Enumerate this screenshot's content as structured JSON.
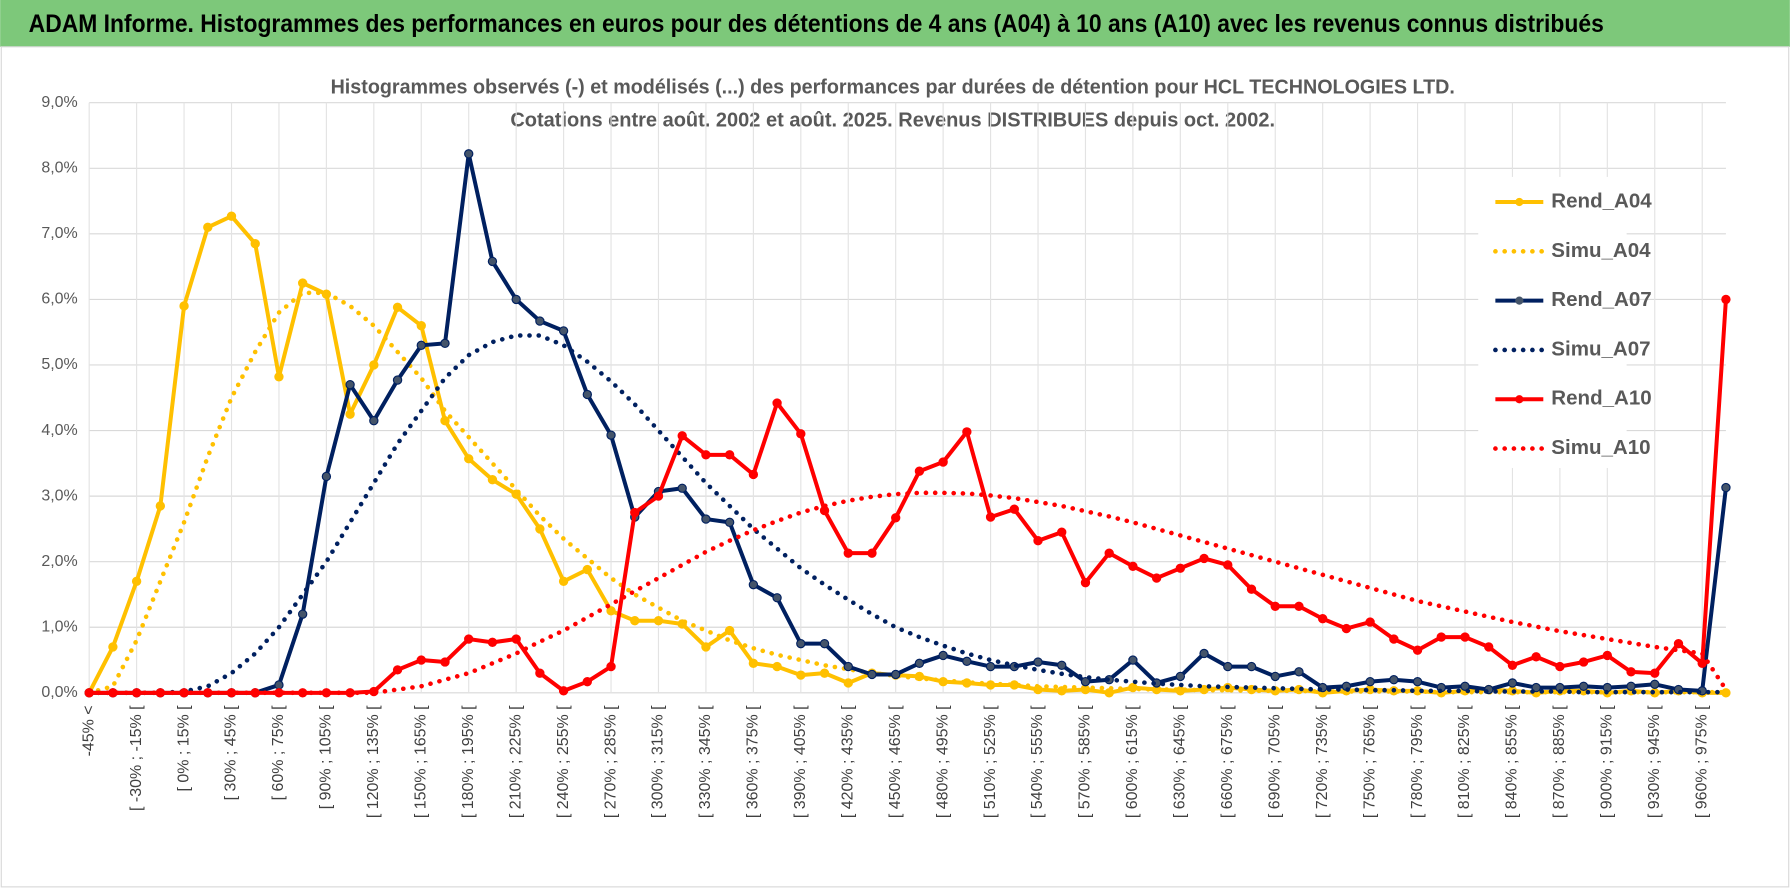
{
  "chart_data": {
    "type": "line",
    "title": "ADAM Informe. Histogrammes des performances en euros pour des détentions de 4 ans (A04) à 10 ans (A10) avec les revenus connus distribués",
    "subtitle": [
      "Histogrammes observés (-) et modélisés (...) des performances par durées de détention pour HCL TECHNOLOGIES LTD.",
      "Cotations entre août. 2002 et août. 2025.  Revenus DISTRIBUES depuis oct. 2002."
    ],
    "categories": [
      "-45% <",
      null,
      "[ -30% ; -15% [",
      null,
      "[ 0% ; 15% [",
      null,
      "[ 30% ; 45% [",
      null,
      "[ 60% ; 75% [",
      null,
      "[ 90% ; 105% [",
      null,
      "[ 120% ; 135% [",
      null,
      "[ 150% ; 165% [",
      null,
      "[ 180% ; 195% [",
      null,
      "[ 210% ; 225% [",
      null,
      "[ 240% ; 255% [",
      null,
      "[ 270% ; 285% [",
      null,
      "[ 300% ; 315% [",
      null,
      "[ 330% ; 345% [",
      null,
      "[ 360% ; 375% [",
      null,
      "[ 390% ; 405% [",
      null,
      "[ 420% ; 435% [",
      null,
      "[ 450% ; 465% [",
      null,
      "[ 480% ; 495% [",
      null,
      "[ 510% ; 525% [",
      null,
      "[ 540% ; 555% [",
      null,
      "[ 570% ; 585% [",
      null,
      "[ 600% ; 615% [",
      null,
      "[ 630% ; 645% [",
      null,
      "[ 660% ; 675% [",
      null,
      "[ 690% ; 705% [",
      null,
      "[ 720% ; 735% [",
      null,
      "[ 750% ; 765% [",
      null,
      "[ 780% ; 795% [",
      null,
      "[ 810% ; 825% [",
      null,
      "[ 840% ; 855% [",
      null,
      "[ 870% ; 885% [",
      null,
      "[ 900% ; 915% [",
      null,
      "[ 930% ; 945% [",
      null,
      "[ 960% ; 975% [",
      null
    ],
    "ylim": [
      0,
      9
    ],
    "yticks": [
      {
        "value": 0,
        "label": "0,0%"
      },
      {
        "value": 1,
        "label": "1,0%"
      },
      {
        "value": 2,
        "label": "2,0%"
      },
      {
        "value": 3,
        "label": "3,0%"
      },
      {
        "value": 4,
        "label": "4,0%"
      },
      {
        "value": 5,
        "label": "5,0%"
      },
      {
        "value": 6,
        "label": "6,0%"
      },
      {
        "value": 7,
        "label": "7,0%"
      },
      {
        "value": 8,
        "label": "8,0%"
      },
      {
        "value": 9,
        "label": "9,0%"
      }
    ],
    "grid": true,
    "legend": "right",
    "series": [
      {
        "name": "Rend_A04",
        "color": "#ffc000",
        "dashed": false,
        "markers": true,
        "values": [
          0,
          0.7,
          1.7,
          2.85,
          5.9,
          7.1,
          7.27,
          6.85,
          4.82,
          6.25,
          6.08,
          4.25,
          5.0,
          5.88,
          5.6,
          4.15,
          3.57,
          3.25,
          3.03,
          2.5,
          1.7,
          1.88,
          1.25,
          1.1,
          1.1,
          1.05,
          0.7,
          0.95,
          0.45,
          0.4,
          0.27,
          0.3,
          0.15,
          0.3,
          0.27,
          0.25,
          0.17,
          0.15,
          0.12,
          0.12,
          0.05,
          0.03,
          0.05,
          0.0,
          0.08,
          0.05,
          0.03,
          0.05,
          0.08,
          0.05,
          0.03,
          0.05,
          0.0,
          0.03,
          0.05,
          0.03,
          0.03,
          0.0,
          0.03,
          0.05,
          0.03,
          0.0,
          0.03,
          0.03,
          0.0,
          0.03,
          0.0,
          0.03,
          0.0,
          0.0
        ]
      },
      {
        "name": "Simu_A04",
        "color": "#ffc000",
        "dashed": true,
        "markers": false,
        "values": [
          0,
          0.1,
          0.8,
          1.7,
          2.6,
          3.6,
          4.5,
          5.2,
          5.8,
          6.1,
          6.1,
          5.9,
          5.6,
          5.2,
          4.8,
          4.3,
          3.9,
          3.5,
          3.1,
          2.7,
          2.35,
          2.05,
          1.75,
          1.5,
          1.3,
          1.1,
          0.95,
          0.8,
          0.68,
          0.58,
          0.5,
          0.42,
          0.36,
          0.3,
          0.26,
          0.22,
          0.19,
          0.16,
          0.14,
          0.12,
          0.1,
          0.09,
          0.08,
          0.07,
          0.06,
          0.05,
          0.05,
          0.04,
          0.04,
          0.03,
          0.03,
          0.03,
          0.02,
          0.02,
          0.02,
          0.02,
          0.02,
          0.01,
          0.01,
          0.01,
          0.01,
          0.01,
          0.01,
          0.01,
          0.01,
          0.01,
          0.01,
          0.01,
          0.01,
          0.01
        ]
      },
      {
        "name": "Rend_A07",
        "color": "#002060",
        "dashed": false,
        "markers": true,
        "values": [
          0,
          0,
          0,
          0,
          0,
          0,
          0,
          0,
          0.12,
          1.2,
          3.3,
          4.7,
          4.15,
          4.77,
          5.3,
          5.33,
          8.22,
          6.58,
          6.0,
          5.67,
          5.52,
          4.55,
          3.93,
          2.68,
          3.07,
          3.12,
          2.65,
          2.6,
          1.65,
          1.45,
          0.75,
          0.75,
          0.4,
          0.28,
          0.28,
          0.45,
          0.57,
          0.48,
          0.4,
          0.4,
          0.47,
          0.42,
          0.17,
          0.2,
          0.5,
          0.15,
          0.25,
          0.6,
          0.4,
          0.4,
          0.25,
          0.32,
          0.08,
          0.1,
          0.17,
          0.2,
          0.17,
          0.08,
          0.1,
          0.05,
          0.15,
          0.08,
          0.08,
          0.1,
          0.08,
          0.1,
          0.13,
          0.05,
          0.03,
          3.13
        ]
      },
      {
        "name": "Simu_A07",
        "color": "#002060",
        "dashed": true,
        "markers": false,
        "values": [
          0,
          0,
          0,
          0,
          0.02,
          0.1,
          0.3,
          0.6,
          1.0,
          1.5,
          2.0,
          2.6,
          3.2,
          3.8,
          4.3,
          4.8,
          5.15,
          5.35,
          5.45,
          5.45,
          5.3,
          5.05,
          4.75,
          4.4,
          4.0,
          3.6,
          3.2,
          2.85,
          2.5,
          2.2,
          1.9,
          1.65,
          1.42,
          1.2,
          1.0,
          0.85,
          0.72,
          0.6,
          0.5,
          0.42,
          0.35,
          0.29,
          0.24,
          0.2,
          0.17,
          0.14,
          0.12,
          0.1,
          0.09,
          0.08,
          0.07,
          0.06,
          0.05,
          0.05,
          0.04,
          0.04,
          0.03,
          0.03,
          0.03,
          0.02,
          0.02,
          0.02,
          0.02,
          0.01,
          0.01,
          0.01,
          0.01,
          0.01,
          0.01,
          0.01
        ]
      },
      {
        "name": "Rend_A10",
        "color": "#ff0000",
        "dashed": false,
        "markers": true,
        "values": [
          0,
          0,
          0,
          0,
          0,
          0,
          0,
          0,
          0,
          0,
          0,
          0,
          0.02,
          0.35,
          0.5,
          0.47,
          0.82,
          0.77,
          0.82,
          0.3,
          0.03,
          0.17,
          0.4,
          2.75,
          3.0,
          3.92,
          3.63,
          3.63,
          3.33,
          4.42,
          3.95,
          2.78,
          2.13,
          2.13,
          2.67,
          3.38,
          3.52,
          3.98,
          2.68,
          2.8,
          2.32,
          2.45,
          1.68,
          2.13,
          1.93,
          1.75,
          1.9,
          2.05,
          1.95,
          1.58,
          1.32,
          1.32,
          1.13,
          0.98,
          1.08,
          0.82,
          0.65,
          0.85,
          0.85,
          0.7,
          0.42,
          0.55,
          0.4,
          0.47,
          0.57,
          0.32,
          0.3,
          0.75,
          0.45,
          6.0
        ]
      },
      {
        "name": "Simu_A10",
        "color": "#ff0000",
        "dashed": true,
        "markers": false,
        "values": [
          0,
          0,
          0,
          0,
          0,
          0,
          0,
          0,
          0,
          0,
          0,
          0,
          0,
          0.05,
          0.1,
          0.2,
          0.3,
          0.45,
          0.6,
          0.78,
          0.95,
          1.15,
          1.35,
          1.55,
          1.75,
          1.95,
          2.15,
          2.32,
          2.48,
          2.62,
          2.75,
          2.85,
          2.93,
          2.99,
          3.03,
          3.05,
          3.05,
          3.04,
          3.01,
          2.97,
          2.91,
          2.85,
          2.77,
          2.69,
          2.6,
          2.5,
          2.4,
          2.3,
          2.2,
          2.1,
          2.0,
          1.9,
          1.8,
          1.7,
          1.6,
          1.5,
          1.4,
          1.32,
          1.24,
          1.16,
          1.08,
          1.01,
          0.94,
          0.88,
          0.82,
          0.76,
          0.7,
          0.65,
          0.6,
          0.05
        ]
      }
    ]
  }
}
